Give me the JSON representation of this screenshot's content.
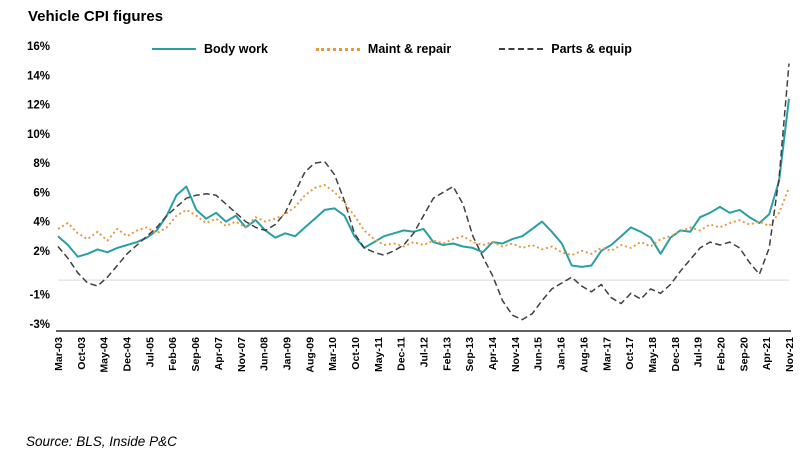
{
  "title": "Vehicle CPI figures",
  "source": "Source: BLS, Inside P&C",
  "chart_data": {
    "type": "line",
    "title": "Vehicle CPI figures",
    "legend_position": "top",
    "grid": "single light horizontal line at 0%",
    "ylim": [
      -3,
      16
    ],
    "yticks": [
      16,
      14,
      12,
      10,
      8,
      6,
      4,
      2,
      -1,
      -3
    ],
    "ytick_suffix": "%",
    "zero_line": 0,
    "x_tick_labels": [
      "Mar-03",
      "Oct-03",
      "May-04",
      "Dec-04",
      "Jul-05",
      "Feb-06",
      "Sep-06",
      "Apr-07",
      "Nov-07",
      "Jun-08",
      "Jan-09",
      "Aug-09",
      "Mar-10",
      "Oct-10",
      "May-11",
      "Dec-11",
      "Jul-12",
      "Feb-13",
      "Sep-13",
      "Apr-14",
      "Nov-14",
      "Jun-15",
      "Jan-16",
      "Aug-16",
      "Mar-17",
      "Oct-17",
      "May-18",
      "Dec-18",
      "Jul-19",
      "Feb-20",
      "Sep-20",
      "Apr-21",
      "Nov-21"
    ],
    "axis_color": "#000000",
    "zero_line_color": "#d9d9d9",
    "series": [
      {
        "name": "Body work",
        "color": "#2a9fa3",
        "style": "solid",
        "values": [
          3.0,
          2.4,
          1.6,
          1.8,
          2.1,
          1.9,
          2.2,
          2.4,
          2.6,
          2.9,
          3.4,
          4.4,
          5.8,
          6.4,
          4.8,
          4.2,
          4.6,
          4.0,
          4.4,
          3.6,
          4.1,
          3.4,
          2.9,
          3.2,
          3.0,
          3.6,
          4.2,
          4.8,
          4.9,
          4.4,
          3.0,
          2.2,
          2.6,
          3.0,
          3.2,
          3.4,
          3.3,
          3.5,
          2.6,
          2.4,
          2.5,
          2.3,
          2.2,
          1.9,
          2.6,
          2.5,
          2.8,
          3.0,
          3.5,
          4.0,
          3.3,
          2.5,
          1.0,
          0.9,
          1.0,
          2.0,
          2.4,
          3.0,
          3.6,
          3.3,
          2.9,
          1.8,
          2.9,
          3.4,
          3.3,
          4.3,
          4.6,
          5.0,
          4.6,
          4.8,
          4.3,
          3.9,
          4.5,
          6.8,
          12.4
        ]
      },
      {
        "name": "Maint & repair",
        "color": "#e8973b",
        "style": "dotted",
        "values": [
          3.5,
          3.9,
          3.2,
          2.8,
          3.3,
          2.7,
          3.5,
          3.0,
          3.4,
          3.6,
          3.2,
          3.6,
          4.4,
          4.8,
          4.4,
          3.9,
          4.2,
          3.7,
          4.0,
          3.6,
          4.3,
          4.0,
          4.2,
          4.5,
          5.0,
          5.8,
          6.3,
          6.5,
          6.0,
          5.3,
          4.4,
          3.4,
          2.8,
          2.4,
          2.5,
          2.3,
          2.6,
          2.4,
          2.7,
          2.5,
          2.8,
          3.0,
          2.6,
          2.4,
          2.6,
          2.3,
          2.5,
          2.2,
          2.4,
          2.1,
          2.3,
          1.9,
          1.7,
          2.0,
          1.8,
          2.2,
          2.0,
          2.4,
          2.2,
          2.6,
          2.3,
          2.8,
          3.0,
          3.3,
          3.6,
          3.4,
          3.8,
          3.6,
          3.9,
          4.1,
          3.8,
          4.0,
          3.7,
          4.6,
          6.3
        ]
      },
      {
        "name": "Parts & equip",
        "color": "#3f3f3f",
        "style": "dashed",
        "values": [
          2.3,
          1.5,
          0.5,
          -0.2,
          -0.4,
          0.2,
          1.0,
          1.8,
          2.4,
          3.0,
          3.6,
          4.4,
          5.0,
          5.6,
          5.8,
          5.9,
          5.8,
          5.2,
          4.6,
          4.0,
          3.6,
          3.4,
          3.8,
          4.6,
          6.0,
          7.4,
          8.0,
          8.1,
          7.2,
          5.4,
          3.2,
          2.2,
          1.9,
          1.7,
          2.0,
          2.4,
          3.2,
          4.4,
          5.6,
          6.0,
          6.4,
          5.2,
          3.0,
          1.6,
          0.3,
          -1.4,
          -2.4,
          -2.7,
          -2.3,
          -1.4,
          -0.6,
          -0.2,
          0.2,
          -0.4,
          -0.8,
          -0.3,
          -1.2,
          -1.6,
          -0.9,
          -1.3,
          -0.6,
          -0.9,
          -0.3,
          0.6,
          1.4,
          2.2,
          2.6,
          2.4,
          2.6,
          2.2,
          1.2,
          0.4,
          2.2,
          7.0,
          14.8
        ]
      }
    ]
  }
}
